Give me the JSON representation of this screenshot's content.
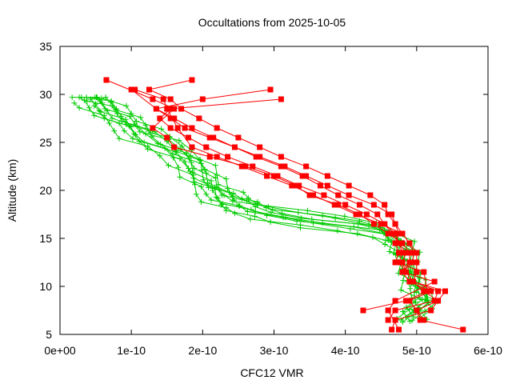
{
  "chart_data": {
    "type": "line",
    "title": "Occultations from 2025-10-05",
    "xlabel": "CFC12 VMR",
    "ylabel": "Altitude (km)",
    "xlim": [
      0,
      6e-10
    ],
    "ylim": [
      5,
      35
    ],
    "x_ticks": [
      {
        "value": 0,
        "label": "0e+00"
      },
      {
        "value": 1e-10,
        "label": "1e-10"
      },
      {
        "value": 2e-10,
        "label": "2e-10"
      },
      {
        "value": 3e-10,
        "label": "3e-10"
      },
      {
        "value": 4e-10,
        "label": "4e-10"
      },
      {
        "value": 5e-10,
        "label": "5e-10"
      },
      {
        "value": 6e-10,
        "label": "6e-10"
      }
    ],
    "y_ticks": [
      {
        "value": 5,
        "label": "5"
      },
      {
        "value": 10,
        "label": "10"
      },
      {
        "value": 15,
        "label": "15"
      },
      {
        "value": 20,
        "label": "20"
      },
      {
        "value": 25,
        "label": "25"
      },
      {
        "value": 30,
        "label": "30"
      },
      {
        "value": 35,
        "label": "35"
      }
    ],
    "grid": false,
    "colors": {
      "red_series": "#ff0000",
      "green_series": "#00cc00"
    },
    "series": [
      {
        "marker": "square",
        "color": "#ff0000",
        "x": [
          5.1e-10,
          5e-10,
          4.9e-10,
          5.2e-10,
          4.9e-10,
          4.8e-10,
          4.9e-10,
          4.9e-10,
          4.8e-10,
          4.6e-10,
          4.4e-10,
          4.2e-10,
          3.9e-10,
          3.5e-10,
          3.3e-10,
          3e-10,
          2.6e-10,
          2.1e-10,
          1.6e-10,
          1.5e-10,
          1.3e-10,
          1.6e-10,
          1.3e-10,
          6.5e-11
        ],
        "y": [
          6.5,
          7.5,
          8.5,
          9.5,
          10.5,
          11.5,
          12.5,
          13.5,
          14.5,
          15.5,
          16.5,
          17.5,
          18.5,
          19.5,
          20.5,
          21.5,
          22.5,
          23.5,
          24.5,
          25.5,
          26.5,
          28.5,
          29.5,
          31.5
        ]
      },
      {
        "marker": "square",
        "color": "#ff0000",
        "x": [
          5.65e-10,
          5.05e-10,
          5e-10,
          5.3e-10,
          5.1e-10,
          4.95e-10,
          5e-10,
          5e-10,
          5e-10,
          4.9e-10,
          4.8e-10,
          4.5e-10,
          4.15e-10,
          3.85e-10,
          3.55e-10,
          3.25e-10,
          2.9e-10,
          2.55e-10,
          2.2e-10,
          1.85e-10,
          1.65e-10,
          1.5e-10,
          1.45e-10,
          1.05e-10
        ],
        "y": [
          5.5,
          6.5,
          7.5,
          8.5,
          9.5,
          10.5,
          11.5,
          12.5,
          13.5,
          14.5,
          15.5,
          16.5,
          17.5,
          18.5,
          19.5,
          20.5,
          21.5,
          22.5,
          23.5,
          24.5,
          26.5,
          28.5,
          29.5,
          30.5
        ]
      },
      {
        "marker": "square",
        "color": "#ff0000",
        "x": [
          4.65e-10,
          4.7e-10,
          5.2e-10,
          5.4e-10,
          4.95e-10,
          4.85e-10,
          4.8e-10,
          4.85e-10,
          4.75e-10,
          4.7e-10,
          4.55e-10,
          4.45e-10,
          4.2e-10,
          3.9e-10,
          3.65e-10,
          3.4e-10,
          3.1e-10,
          2.75e-10,
          2.45e-10,
          2.1e-10,
          1.75e-10,
          1.55e-10,
          1.35e-10,
          1e-10
        ],
        "y": [
          5.5,
          6.5,
          7.5,
          9.5,
          10.5,
          11.5,
          12.5,
          13.5,
          14.5,
          15.5,
          16.5,
          17.5,
          18.5,
          19.5,
          20.5,
          21.5,
          22.5,
          23.5,
          24.5,
          25.5,
          26.5,
          27.5,
          28.5,
          30.5
        ]
      },
      {
        "marker": "square",
        "color": "#ff0000",
        "x": [
          4.25e-10,
          4.85e-10,
          5.15e-10,
          5.1e-10,
          4.7e-10,
          4.75e-10,
          4.7e-10,
          4.75e-10,
          4.7e-10,
          4.6e-10,
          4.55e-10,
          4.35e-10,
          4.05e-10,
          3.75e-10,
          3.45e-10,
          3.1e-10,
          2.8e-10,
          2.5e-10,
          2.2e-10,
          1.95e-10,
          1.7e-10,
          1.55e-10,
          1.25e-10,
          1.85e-10
        ],
        "y": [
          7.5,
          8.5,
          9.5,
          11.5,
          12.5,
          13.5,
          14.5,
          15.5,
          16.5,
          17.5,
          18.5,
          19.5,
          20.5,
          21.5,
          22.5,
          23.5,
          24.5,
          25.5,
          26.5,
          27.5,
          28.5,
          29.5,
          30.5,
          31.5
        ]
      },
      {
        "marker": "square",
        "color": "#ff0000",
        "x": [
          4.75e-10,
          4.6e-10,
          4.7e-10,
          5.25e-10,
          4.8e-10,
          4.95e-10,
          4.95e-10,
          4.9e-10,
          4.8e-10,
          4.7e-10,
          4.65e-10,
          4.4e-10,
          4.05e-10,
          3.75e-10,
          3.45e-10,
          3.15e-10,
          2.8e-10,
          2.45e-10,
          2.15e-10,
          1.85e-10,
          1.6e-10,
          1.35e-10,
          2e-10,
          2.95e-10
        ],
        "y": [
          5.5,
          7.5,
          8.5,
          10.5,
          11.5,
          12.5,
          13.5,
          14.5,
          15.5,
          16.5,
          17.5,
          18.5,
          19.5,
          20.5,
          21.5,
          22.5,
          23.5,
          24.5,
          25.5,
          26.5,
          27.5,
          28.5,
          29.5,
          30.5
        ]
      },
      {
        "marker": "square",
        "color": "#ff0000",
        "x": [
          4.6e-10,
          4.7e-10,
          5.25e-10,
          5.3e-10,
          4.95e-10,
          4.85e-10,
          4.75e-10,
          4.8e-10,
          4.75e-10,
          4.65e-10,
          4.55e-10,
          4.3e-10,
          4e-10,
          3.7e-10,
          3.35e-10,
          3.05e-10,
          2.7e-10,
          2.35e-10,
          2.05e-10,
          1.8e-10,
          1.55e-10,
          1.4e-10,
          1.55e-10,
          3.1e-10
        ],
        "y": [
          6.5,
          7.5,
          8.5,
          9.5,
          10.5,
          11.5,
          12.5,
          13.5,
          14.5,
          15.5,
          16.5,
          17.5,
          18.5,
          19.5,
          20.5,
          21.5,
          22.5,
          23.5,
          24.5,
          25.5,
          26.5,
          27.5,
          28.5,
          29.5
        ]
      }
    ]
  }
}
